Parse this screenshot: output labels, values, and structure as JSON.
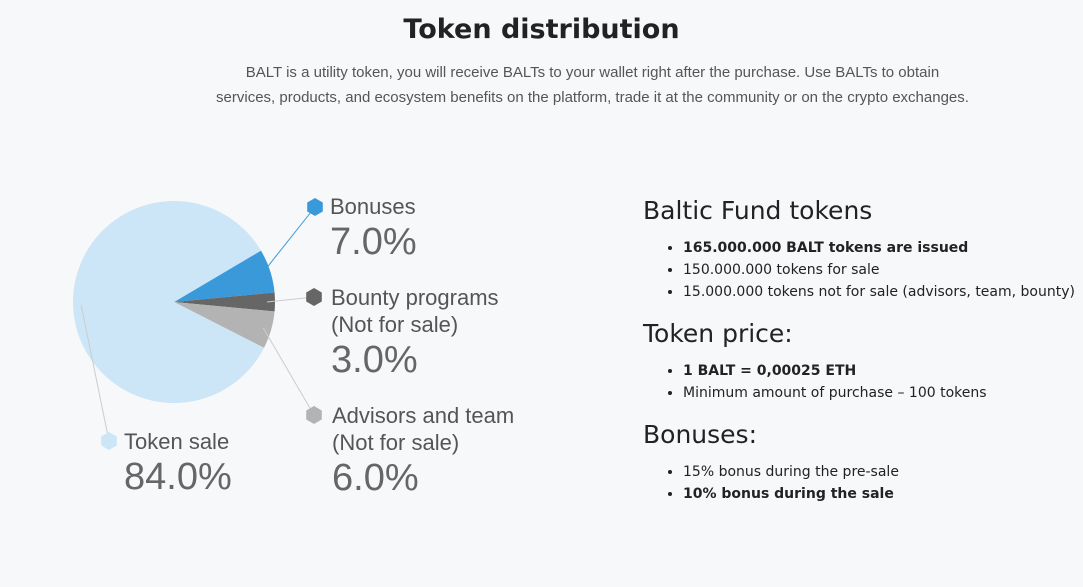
{
  "header": {
    "title": "Token distribution",
    "description": "BALT is a utility token, you will receive BALTs to your wallet right after the purchase. Use BALTs to obtain services, products, and ecosystem benefits on the platform, trade it at the community or on the crypto exchanges."
  },
  "chart_data": {
    "type": "pie",
    "categories": [
      "Bonuses",
      "Bounty programs (Not for sale)",
      "Advisors and team (Not for sale)",
      "Token sale"
    ],
    "values": [
      7,
      3,
      6,
      84
    ],
    "value_labels": [
      "7.0%",
      "3.0%",
      "6.0%",
      "84.0%"
    ],
    "colors": [
      "#3a9ad9",
      "#666666",
      "#b3b3b3",
      "#cce6f7"
    ]
  },
  "info": {
    "sections": [
      {
        "title": "Baltic Fund tokens",
        "items": [
          "165.000.000 BALT tokens are issued",
          "150.000.000 tokens for sale",
          "15.000.000 tokens not for sale (advisors, team, bounty)"
        ]
      },
      {
        "title": "Token price:",
        "items": [
          "1 BALT = 0,00025 ETH",
          "Minimum amount of purchase – 100 tokens"
        ]
      },
      {
        "title": "Bonuses:",
        "items": [
          "15% bonus during the pre-sale",
          "10% bonus during the sale"
        ]
      }
    ]
  }
}
